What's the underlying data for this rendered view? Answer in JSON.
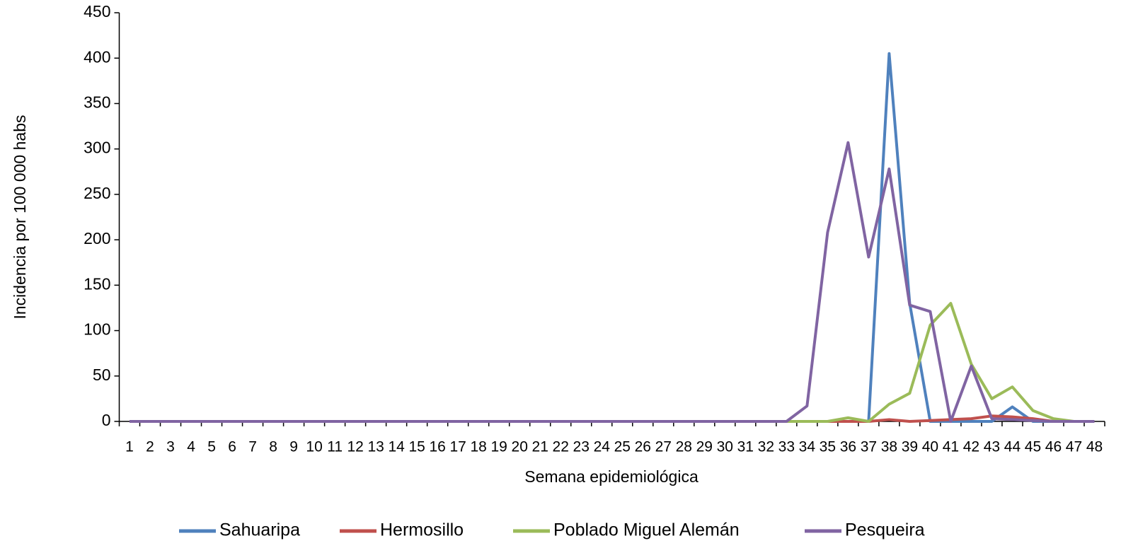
{
  "chart_data": {
    "type": "line",
    "x_label": "Semana epidemiológica",
    "y_label": "Incidencia por 100 000 habs",
    "categories": [
      "1",
      "2",
      "3",
      "4",
      "5",
      "6",
      "7",
      "8",
      "9",
      "10",
      "11",
      "12",
      "13",
      "14",
      "15",
      "16",
      "17",
      "18",
      "19",
      "20",
      "21",
      "22",
      "23",
      "24",
      "25",
      "26",
      "27",
      "28",
      "29",
      "30",
      "31",
      "32",
      "33",
      "34",
      "35",
      "36",
      "37",
      "38",
      "39",
      "40",
      "41",
      "42",
      "43",
      "44",
      "45",
      "46",
      "47",
      "48"
    ],
    "ylim": [
      0,
      450
    ],
    "yticks": [
      0,
      50,
      100,
      150,
      200,
      250,
      300,
      350,
      400,
      450
    ],
    "legend": "bottom",
    "series": [
      {
        "name": "Sahuaripa",
        "color": "#4f81bd",
        "values": [
          0,
          0,
          0,
          0,
          0,
          0,
          0,
          0,
          0,
          0,
          0,
          0,
          0,
          0,
          0,
          0,
          0,
          0,
          0,
          0,
          0,
          0,
          0,
          0,
          0,
          0,
          0,
          0,
          0,
          0,
          0,
          0,
          0,
          0,
          0,
          0,
          0,
          405,
          130,
          0,
          0,
          0,
          0,
          16,
          0,
          0,
          0,
          0
        ]
      },
      {
        "name": "Hermosillo",
        "color": "#c0504d",
        "values": [
          0,
          0,
          0,
          0,
          0,
          0,
          0,
          0,
          0,
          0,
          0,
          0,
          0,
          0,
          0,
          0,
          0,
          0,
          0,
          0,
          0,
          0,
          0,
          0,
          0,
          0,
          0,
          0,
          0,
          0,
          0,
          0,
          0,
          0,
          0,
          0,
          0,
          2,
          0,
          1,
          2,
          3,
          6,
          5,
          3,
          0,
          0,
          0
        ]
      },
      {
        "name": "Poblado Miguel Alemán",
        "color": "#9bbb59",
        "values": [
          0,
          0,
          0,
          0,
          0,
          0,
          0,
          0,
          0,
          0,
          0,
          0,
          0,
          0,
          0,
          0,
          0,
          0,
          0,
          0,
          0,
          0,
          0,
          0,
          0,
          0,
          0,
          0,
          0,
          0,
          0,
          0,
          0,
          0,
          0,
          4,
          0,
          19,
          31,
          106,
          130,
          63,
          25,
          38,
          12,
          3,
          0,
          0
        ]
      },
      {
        "name": "Pesqueira",
        "color": "#8064a2",
        "values": [
          0,
          0,
          0,
          0,
          0,
          0,
          0,
          0,
          0,
          0,
          0,
          0,
          0,
          0,
          0,
          0,
          0,
          0,
          0,
          0,
          0,
          0,
          0,
          0,
          0,
          0,
          0,
          0,
          0,
          0,
          0,
          0,
          0,
          17,
          208,
          307,
          181,
          278,
          128,
          121,
          0,
          61,
          3,
          2,
          1,
          0,
          0,
          0
        ]
      }
    ]
  }
}
